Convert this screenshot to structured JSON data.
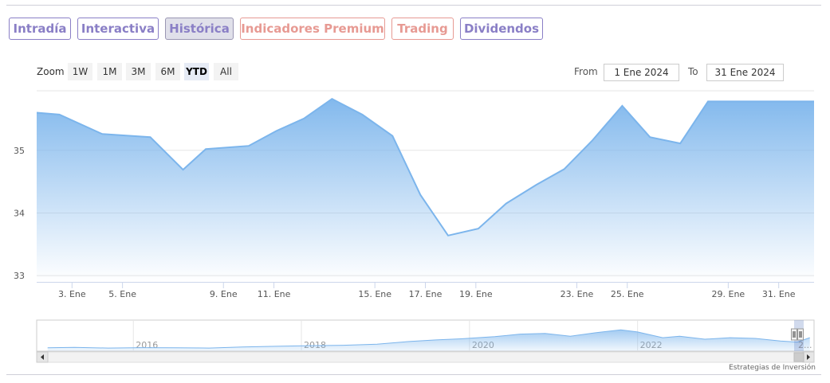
{
  "tabs": [
    {
      "label": "Intradía",
      "style": "purple",
      "active": false
    },
    {
      "label": "Interactiva",
      "style": "purple",
      "active": false
    },
    {
      "label": "Histórica",
      "style": "purple",
      "active": true
    },
    {
      "label": "Indicadores Premium",
      "style": "red",
      "active": false
    },
    {
      "label": "Trading",
      "style": "red",
      "active": false
    },
    {
      "label": "Dividendos",
      "style": "purple",
      "active": false
    }
  ],
  "range_selector": {
    "zoom_label": "Zoom",
    "buttons": [
      "1W",
      "1M",
      "3M",
      "6M",
      "YTD",
      "All"
    ],
    "selected": "YTD",
    "from_label": "From",
    "from_value": "1 Ene 2024",
    "to_label": "To",
    "to_value": "31 Ene 2024"
  },
  "credit": "Estrategias de Inversión",
  "colors": {
    "line": "#7cb5ec",
    "fill_top": "#7cb5ec",
    "purple": "#8a7fc6",
    "red": "#e79a93"
  },
  "chart_data": {
    "type": "area",
    "ylim": [
      32.9,
      35.95
    ],
    "yticks": [
      33,
      34,
      35
    ],
    "xlim": [
      1.6,
      32.4
    ],
    "xticks": [
      {
        "day": 3,
        "label": "3. Ene"
      },
      {
        "day": 5,
        "label": "5. Ene"
      },
      {
        "day": 9,
        "label": "9. Ene"
      },
      {
        "day": 11,
        "label": "11. Ene"
      },
      {
        "day": 15,
        "label": "15. Ene"
      },
      {
        "day": 17,
        "label": "17. Ene"
      },
      {
        "day": 19,
        "label": "19. Ene"
      },
      {
        "day": 23,
        "label": "23. Ene"
      },
      {
        "day": 25,
        "label": "25. Ene"
      },
      {
        "day": 29,
        "label": "29. Ene"
      },
      {
        "day": 31,
        "label": "31. Ene"
      }
    ],
    "series": [
      {
        "x": [
          1.6,
          2.5,
          4.2,
          6.1,
          7.4,
          8.3,
          10.0,
          11.1,
          12.2,
          13.3,
          14.5,
          15.7,
          16.8,
          17.9,
          19.1,
          20.2,
          21.4,
          22.5,
          23.6,
          24.8,
          25.9,
          27.1,
          28.2,
          29.3,
          30.4,
          31.5,
          32.4
        ],
        "y": [
          35.6,
          35.57,
          35.26,
          35.21,
          34.69,
          35.02,
          35.07,
          35.31,
          35.51,
          35.82,
          35.57,
          35.23,
          34.29,
          33.64,
          33.75,
          34.15,
          34.45,
          34.7,
          35.15,
          35.71,
          35.21,
          35.11,
          35.78,
          35.78,
          35.78,
          35.78,
          35.78
        ]
      }
    ]
  },
  "navigator": {
    "year_labels": [
      {
        "year": 2016,
        "label": "2016"
      },
      {
        "year": 2018,
        "label": "2018"
      },
      {
        "year": 2020,
        "label": "2020"
      },
      {
        "year": 2022,
        "label": "2022"
      }
    ],
    "truncated_label": "2...",
    "xlim": [
      2014.85,
      2024.1
    ],
    "ylim": [
      0,
      1
    ],
    "x": [
      2014.98,
      2015.3,
      2015.7,
      2016.1,
      2016.5,
      2016.9,
      2017.3,
      2017.7,
      2018.1,
      2018.5,
      2018.9,
      2019.3,
      2019.6,
      2019.9,
      2020.1,
      2020.3,
      2020.6,
      2020.9,
      2021.2,
      2021.5,
      2021.8,
      2022.0,
      2022.3,
      2022.5,
      2022.8,
      2023.1,
      2023.4,
      2023.7,
      2023.9,
      2024.05
    ],
    "y": [
      0.08,
      0.1,
      0.07,
      0.09,
      0.08,
      0.07,
      0.12,
      0.15,
      0.18,
      0.2,
      0.25,
      0.38,
      0.45,
      0.5,
      0.55,
      0.6,
      0.72,
      0.75,
      0.62,
      0.78,
      0.92,
      0.82,
      0.55,
      0.62,
      0.48,
      0.55,
      0.52,
      0.4,
      0.35,
      0.55
    ]
  }
}
